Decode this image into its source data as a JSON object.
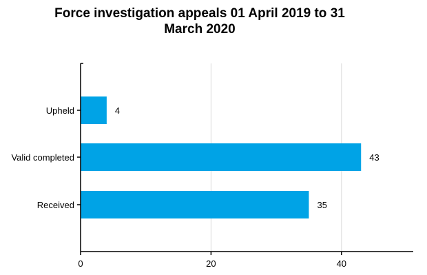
{
  "chart_data": {
    "type": "bar",
    "orientation": "horizontal",
    "title_lines": [
      "Force investigation appeals 01 April 2019 to 31",
      "March 2020"
    ],
    "categories": [
      "Upheld",
      "Valid completed",
      "Received"
    ],
    "values": [
      4,
      43,
      35
    ],
    "xlabel": "",
    "ylabel": "",
    "xlim": [
      0,
      51
    ],
    "xticks": [
      0,
      20,
      40
    ],
    "grid": true,
    "bar_color": "#00a3e6"
  }
}
